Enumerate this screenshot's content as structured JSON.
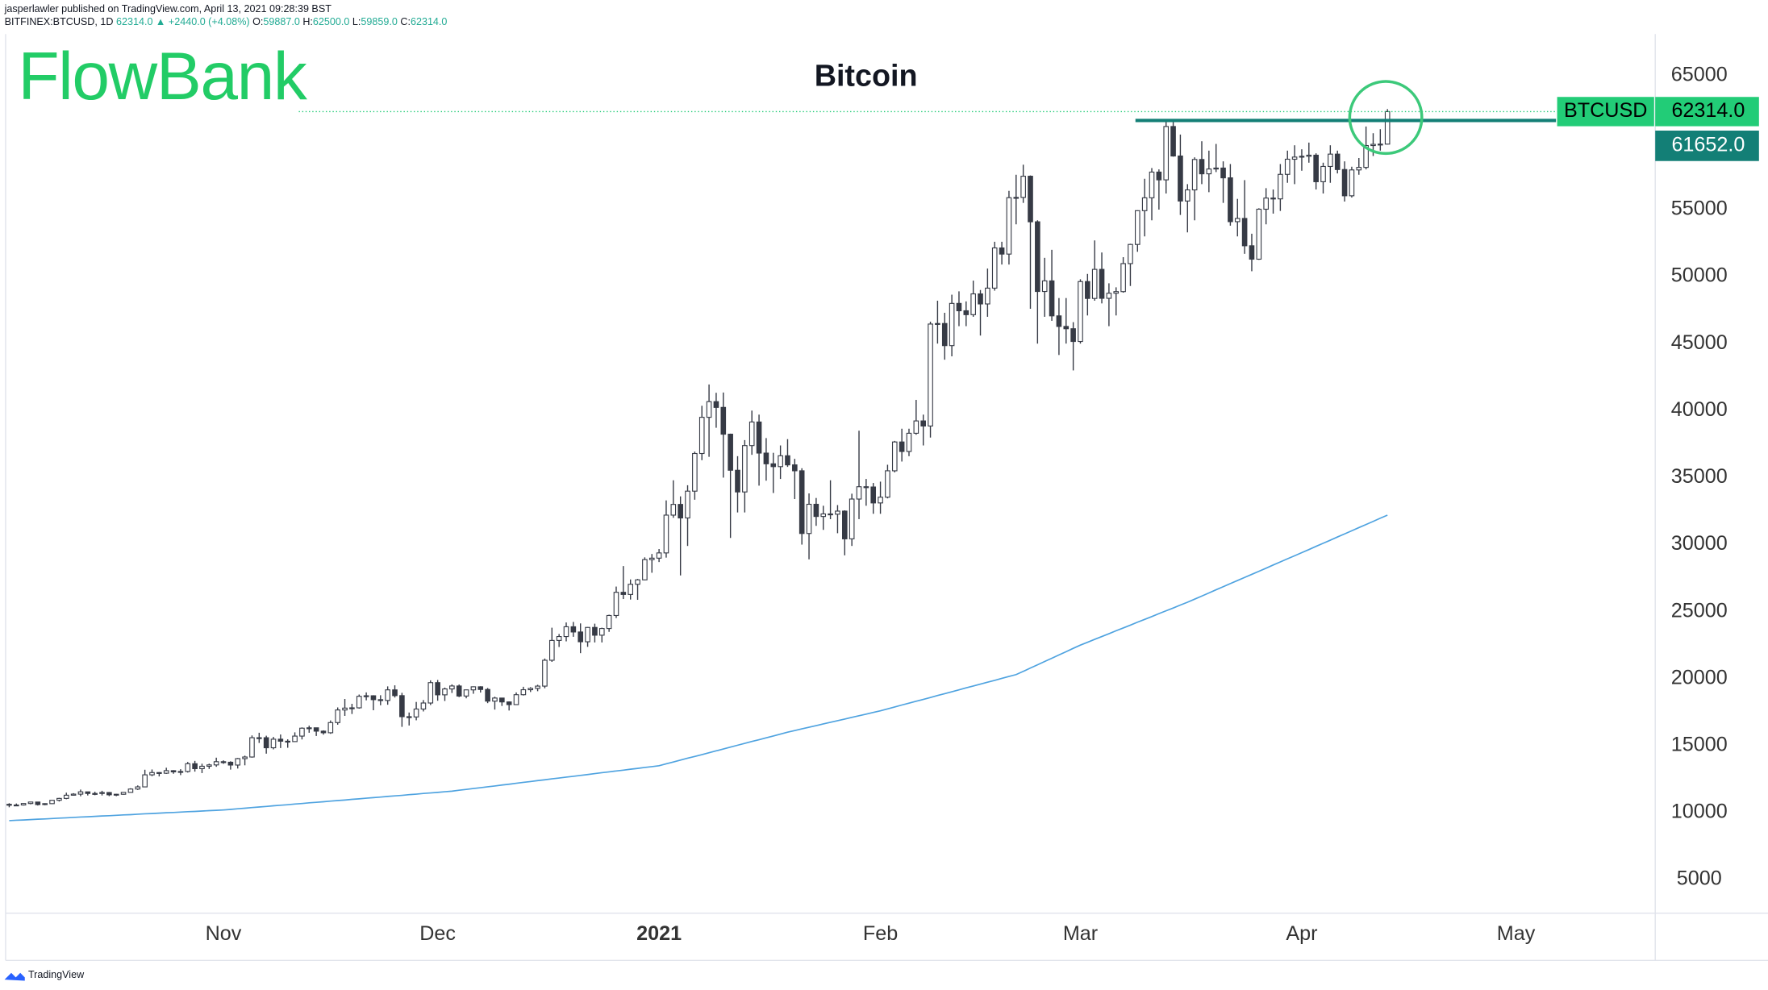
{
  "header": {
    "author_line": "jasperlawler published on TradingView.com, April 13, 2021 09:28:39 BST",
    "symbol": "BITFINEX:BTCUSD, 1D",
    "change": "62314.0 ▲ +2440.0 (+4.08%)",
    "ohlc": [
      {
        "key": "O:",
        "value": "59887.0"
      },
      {
        "key": "H:",
        "value": "62500.0"
      },
      {
        "key": "L:",
        "value": "59859.0"
      },
      {
        "key": "C:",
        "value": "62314.0"
      }
    ],
    "logo": "FlowBank",
    "footer": "TradingView"
  },
  "chart_data": {
    "type": "candlestick",
    "title": "Bitcoin",
    "xlim": [
      -0.5,
      230.5
    ],
    "xticks": [
      {
        "value": 30,
        "label": "Nov"
      },
      {
        "value": 60,
        "label": "Dec"
      },
      {
        "value": 91,
        "label": "2021"
      },
      {
        "value": 122,
        "label": "Feb"
      },
      {
        "value": 150,
        "label": "Mar"
      },
      {
        "value": 181,
        "label": "Apr"
      },
      {
        "value": 211,
        "label": "May"
      }
    ],
    "ylim": [
      2500,
      68100
    ],
    "yticks": [
      5000,
      10000,
      15000,
      20000,
      25000,
      30000,
      35000,
      40000,
      45000,
      50000,
      55000,
      60000,
      65000
    ],
    "grid": false,
    "series": [
      {
        "name": "BTCUSD",
        "up_color": "#ffffff",
        "down_color": "#363a45",
        "wick_color": "#363a45",
        "open": [
          10620,
          10560,
          10570,
          10680,
          10790,
          10600,
          10670,
          10920,
          11060,
          11300,
          11380,
          11550,
          11430,
          11430,
          11500,
          11330,
          11370,
          11510,
          11760,
          11920,
          12820,
          12990,
          12940,
          13130,
          13040,
          13070,
          13650,
          13280,
          13460,
          13560,
          13800,
          13760,
          13550,
          14030,
          14150,
          15590,
          15590,
          14840,
          15480,
          15330,
          15300,
          15710,
          16300,
          16330,
          16080,
          15960,
          16720,
          17660,
          17800,
          17820,
          18680,
          18720,
          18430,
          18370,
          19160,
          18730,
          17160,
          17140,
          17730,
          18180,
          19700,
          18790,
          19230,
          19450,
          18700,
          19160,
          19390,
          19190,
          18320,
          18550,
          18260,
          18060,
          18800,
          19170,
          19270,
          19440,
          21370,
          22850,
          23140,
          23870,
          23480,
          22750,
          23820,
          23240,
          23740,
          24710,
          26440,
          26280,
          27040,
          27370,
          28880,
          28990,
          29380,
          32200,
          33000,
          31990,
          33990,
          36800,
          39500,
          40670,
          40240,
          38240,
          35550,
          33930,
          37390,
          39150,
          36830,
          36030,
          35820,
          36630,
          35950,
          35510,
          30830,
          33010,
          32100,
          32290,
          32270,
          32500,
          30430,
          33400,
          34320,
          34300,
          33110,
          33540,
          35510,
          37660,
          36950,
          38310,
          39230,
          38850,
          46460,
          46500,
          44850,
          48000,
          47450,
          47160,
          48710,
          47960,
          49140,
          52140,
          51680,
          55890,
          55910,
          57490,
          54090,
          48890,
          49680,
          47070,
          46280,
          46110,
          45160,
          49630,
          48370,
          50540,
          48380,
          48760,
          48880,
          50970,
          52400,
          54920,
          55880,
          57800,
          57220,
          61200,
          59000,
          55640,
          56470,
          58740,
          57670,
          58030,
          58100,
          57370,
          54100,
          54340,
          52300,
          51300,
          55030,
          55860,
          55800,
          57630,
          58760,
          58920,
          58980,
          59060,
          57080,
          58220,
          59140,
          57990,
          56030,
          57960,
          58150,
          59780,
          59870,
          59887
        ],
        "high": [
          10700,
          10680,
          10700,
          10800,
          10800,
          10700,
          10940,
          11100,
          11490,
          11450,
          11720,
          11550,
          11560,
          11630,
          11540,
          11400,
          11520,
          11820,
          12030,
          13200,
          13220,
          13020,
          13350,
          13170,
          13240,
          13780,
          13860,
          13650,
          13650,
          14100,
          13900,
          13830,
          14080,
          14250,
          15760,
          15960,
          15740,
          15650,
          15830,
          15470,
          15990,
          16360,
          16490,
          16330,
          16140,
          16880,
          17850,
          18480,
          18120,
          18810,
          18970,
          18760,
          18760,
          19420,
          19500,
          18940,
          17470,
          18260,
          18400,
          19870,
          19900,
          19330,
          19570,
          19560,
          19180,
          19420,
          19430,
          19300,
          18650,
          18570,
          18300,
          18970,
          19390,
          19360,
          19540,
          21500,
          23800,
          23330,
          24190,
          24230,
          24120,
          23850,
          24100,
          23800,
          24770,
          26870,
          28400,
          27400,
          27440,
          29050,
          29300,
          29670,
          33300,
          34800,
          33600,
          34430,
          36940,
          40360,
          41950,
          41330,
          41350,
          38280,
          36600,
          37800,
          40000,
          39700,
          37950,
          36850,
          37400,
          37870,
          36400,
          35700,
          33820,
          33480,
          32900,
          34800,
          32950,
          32560,
          33800,
          38500,
          34900,
          34600,
          34700,
          35960,
          37740,
          38650,
          38650,
          40800,
          39700,
          46640,
          48200,
          47300,
          48650,
          48900,
          48150,
          49700,
          49000,
          50600,
          52600,
          52600,
          56400,
          57600,
          58350,
          57550,
          54200,
          51400,
          52000,
          48400,
          48400,
          46600,
          49800,
          50200,
          52700,
          51800,
          49500,
          49200,
          51450,
          52450,
          54950,
          57300,
          58100,
          58000,
          61700,
          61700,
          60600,
          56900,
          58900,
          60100,
          59400,
          59900,
          58600,
          58400,
          55800,
          57200,
          53200,
          55100,
          56600,
          56500,
          58400,
          59400,
          59800,
          59500,
          60000,
          59200,
          58500,
          59800,
          59400,
          58600,
          58200,
          58850,
          61200,
          60700,
          61000,
          62500
        ],
        "low": [
          10400,
          10500,
          10530,
          10620,
          10530,
          10550,
          10640,
          10830,
          11000,
          11270,
          11220,
          11280,
          11300,
          11280,
          11230,
          11230,
          11340,
          11500,
          11690,
          11900,
          12720,
          12700,
          12890,
          12900,
          12800,
          12990,
          13060,
          12950,
          13260,
          13420,
          13640,
          13210,
          13290,
          13530,
          14100,
          15200,
          14400,
          14720,
          14820,
          14840,
          15290,
          15460,
          15960,
          15720,
          15820,
          15880,
          16560,
          17220,
          17360,
          17760,
          18380,
          17640,
          18010,
          18050,
          18590,
          16400,
          16500,
          16890,
          17550,
          18030,
          18350,
          18330,
          18930,
          18620,
          18530,
          18870,
          18960,
          18170,
          17690,
          17960,
          17620,
          18030,
          18740,
          19000,
          19060,
          19280,
          21250,
          22360,
          22780,
          23120,
          21900,
          22370,
          22700,
          22700,
          23490,
          24520,
          25940,
          25900,
          25880,
          27340,
          27900,
          28700,
          29030,
          32000,
          27700,
          29900,
          33350,
          36300,
          36550,
          38720,
          35000,
          30500,
          32400,
          32400,
          36700,
          34400,
          34770,
          33850,
          34900,
          35800,
          33400,
          30000,
          28900,
          31400,
          31100,
          31900,
          30850,
          29200,
          29900,
          31900,
          32900,
          32300,
          32300,
          33450,
          35390,
          36200,
          36600,
          38200,
          37400,
          37990,
          45000,
          43800,
          44050,
          46300,
          46300,
          47000,
          45600,
          47000,
          48950,
          50900,
          50900,
          53900,
          55500,
          47600,
          45000,
          47000,
          46700,
          44150,
          45000,
          43000,
          45000,
          47100,
          48200,
          48000,
          46300,
          47100,
          48800,
          49300,
          51850,
          53000,
          54200,
          55000,
          56200,
          58950,
          54600,
          53300,
          54200,
          56900,
          56300,
          57800,
          55500,
          53800,
          53000,
          51700,
          50400,
          51250,
          53900,
          54700,
          54900,
          57000,
          56900,
          57900,
          58500,
          56500,
          56200,
          57000,
          57700,
          55600,
          55900,
          57600,
          58000,
          59000,
          59400,
          59859
        ],
        "close": [
          10560,
          10570,
          10680,
          10790,
          10600,
          10670,
          10920,
          11060,
          11300,
          11380,
          11550,
          11430,
          11430,
          11500,
          11330,
          11370,
          11510,
          11760,
          11920,
          12820,
          12990,
          12940,
          13130,
          13040,
          13070,
          13650,
          13280,
          13460,
          13560,
          13800,
          13760,
          13550,
          14030,
          14150,
          15590,
          15590,
          14840,
          15480,
          15330,
          15300,
          15710,
          16300,
          16330,
          16080,
          15960,
          16720,
          17660,
          17800,
          17820,
          18680,
          18720,
          18430,
          18370,
          19160,
          18730,
          17160,
          17140,
          17730,
          18180,
          19700,
          18790,
          19230,
          19450,
          18700,
          19160,
          19390,
          19190,
          18320,
          18550,
          18260,
          18060,
          18800,
          19170,
          19270,
          19440,
          21370,
          22850,
          23140,
          23870,
          23480,
          22750,
          23820,
          23240,
          23740,
          24710,
          26440,
          26280,
          27040,
          27370,
          28880,
          28990,
          29380,
          32200,
          33000,
          31990,
          33990,
          36800,
          39500,
          40670,
          40240,
          38240,
          35550,
          33930,
          37390,
          39150,
          36830,
          36030,
          35820,
          36630,
          35950,
          35510,
          30830,
          33010,
          32100,
          32290,
          32270,
          32500,
          30430,
          33400,
          34320,
          34300,
          33110,
          33540,
          35510,
          37660,
          36950,
          38310,
          39230,
          38850,
          46460,
          46500,
          44850,
          48000,
          47450,
          47160,
          48710,
          47960,
          49140,
          52140,
          51680,
          55890,
          55910,
          57490,
          54090,
          48890,
          49680,
          47070,
          46280,
          46110,
          45160,
          49630,
          48370,
          50540,
          48380,
          48760,
          48880,
          50970,
          52400,
          54920,
          55880,
          57800,
          57220,
          61200,
          59000,
          55640,
          56470,
          58740,
          57670,
          58030,
          58100,
          57370,
          54100,
          54340,
          52300,
          51300,
          55030,
          55860,
          55800,
          57630,
          58760,
          58920,
          58980,
          59060,
          57080,
          58220,
          59140,
          57990,
          56030,
          57960,
          58150,
          59780,
          59870,
          59887,
          62314
        ]
      }
    ],
    "moving_average": {
      "color": "#4fa3e0",
      "values": [
        9400,
        9430,
        9450,
        9480,
        9510,
        9530,
        9560,
        9590,
        9610,
        9640,
        9670,
        9690,
        9720,
        9750,
        9770,
        9800,
        9830,
        9850,
        9880,
        9910,
        9930,
        9960,
        9990,
        10010,
        10040,
        10070,
        10090,
        10120,
        10150,
        10170,
        10200,
        10240,
        10290,
        10330,
        10380,
        10420,
        10460,
        10510,
        10550,
        10590,
        10640,
        10680,
        10730,
        10770,
        10810,
        10860,
        10900,
        10940,
        10990,
        11030,
        11080,
        11120,
        11160,
        11210,
        11250,
        11290,
        11340,
        11380,
        11430,
        11470,
        11510,
        11560,
        11600,
        11670,
        11730,
        11800,
        11860,
        11930,
        11990,
        12060,
        12120,
        12190,
        12260,
        12320,
        12390,
        12450,
        12520,
        12580,
        12650,
        12710,
        12780,
        12840,
        12910,
        12980,
        13040,
        13110,
        13170,
        13240,
        13300,
        13370,
        13430,
        13500,
        13640,
        13780,
        13920,
        14060,
        14190,
        14330,
        14470,
        14610,
        14750,
        14890,
        15030,
        15170,
        15310,
        15440,
        15580,
        15720,
        15860,
        16000,
        16120,
        16250,
        16370,
        16490,
        16620,
        16740,
        16860,
        16980,
        17110,
        17230,
        17350,
        17480,
        17600,
        17740,
        17880,
        18030,
        18170,
        18310,
        18450,
        18590,
        18740,
        18880,
        19020,
        19160,
        19310,
        19450,
        19590,
        19730,
        19870,
        20020,
        20160,
        20300,
        20540,
        20790,
        21030,
        21280,
        21520,
        21770,
        22010,
        22260,
        22500,
        22710,
        22930,
        23140,
        23350,
        23570,
        23780,
        23990,
        24210,
        24420,
        24630,
        24850,
        25060,
        25270,
        25490,
        25700,
        25930,
        26160,
        26390,
        26630,
        26860,
        27090,
        27320,
        27550,
        27780,
        28010,
        28240,
        28480,
        28710,
        28940,
        29170,
        29400,
        29630,
        29870,
        30100,
        30330,
        30570,
        30800,
        31030,
        31270,
        31500,
        31730,
        31970,
        32200
      ]
    },
    "last_price": {
      "value": 62314,
      "label": "62314.0",
      "color": "#22cc77"
    },
    "level": {
      "value": 61652,
      "label": "61652.0",
      "color": "#137f76"
    }
  }
}
